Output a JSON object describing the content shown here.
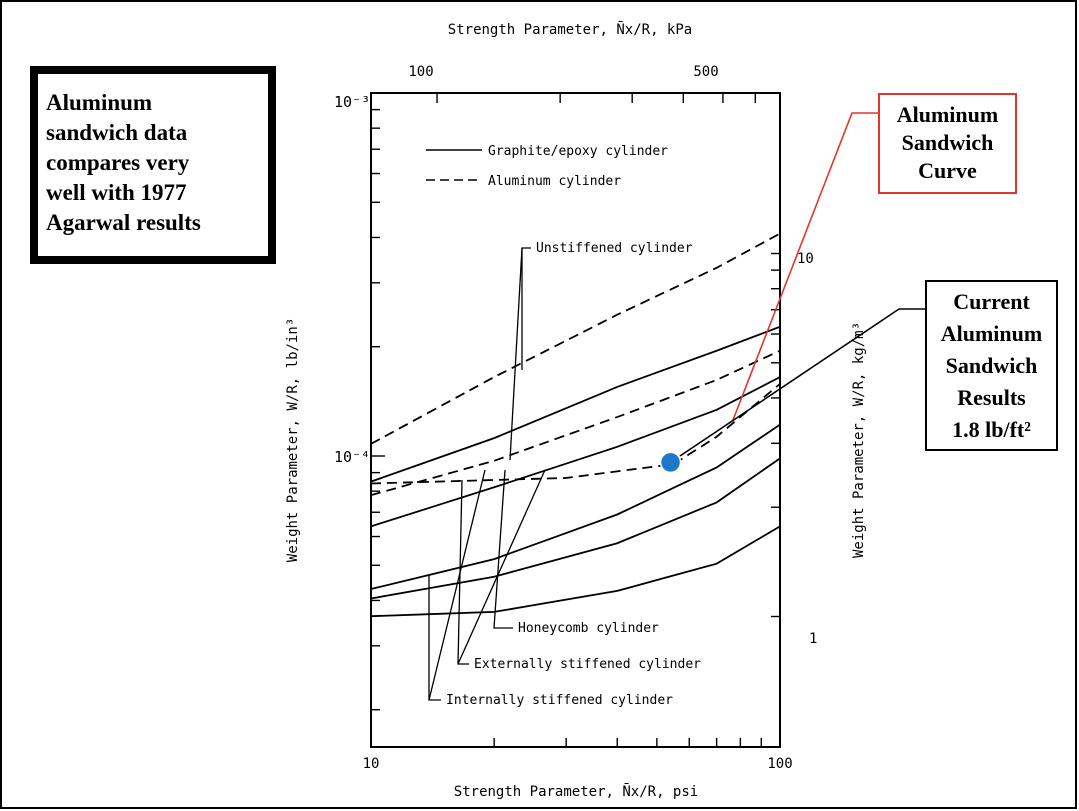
{
  "chart_data": {
    "type": "line",
    "x_scale": "log",
    "y_scale": "log",
    "xlim": [
      10,
      100
    ],
    "ylim": [
      1e-05,
      0.001
    ],
    "xlabel_bottom": "Strength Parameter, N̄x/R, psi",
    "xlabel_top": "Strength Parameter, N̄x/R, kPa",
    "ylabel_left": "Weight Parameter, W/R, lb/in³",
    "ylabel_right": "Weight Parameter, W/R, kg/m³",
    "x_ticks_bottom": [
      "10",
      "100"
    ],
    "x_ticks_top": [
      "100",
      "500"
    ],
    "y_ticks_left": [
      "10⁻³",
      "10⁻⁴"
    ],
    "y_ticks_right": [
      "10",
      "1"
    ],
    "legend": [
      {
        "label": "Graphite/epoxy cylinder",
        "style": "solid"
      },
      {
        "label": "Aluminum cylinder",
        "style": "dashed"
      }
    ],
    "legend_position": "top-left",
    "annotations": [
      "Unstiffened cylinder",
      "Honeycomb cylinder",
      "Externally stiffened cylinder",
      "Internally stiffened cylinder"
    ],
    "series": [
      {
        "style": "dashed",
        "x": [
          10,
          20,
          40,
          70,
          100
        ],
        "y": [
          0.000108,
          0.000165,
          0.000245,
          0.00033,
          0.00041
        ]
      },
      {
        "style": "solid",
        "x": [
          10,
          20,
          40,
          70,
          100
        ],
        "y": [
          8.5e-05,
          0.000112,
          0.000155,
          0.000195,
          0.000227
        ]
      },
      {
        "style": "dashed",
        "x": [
          10,
          20,
          40,
          70,
          100
        ],
        "y": [
          7.8e-05,
          9.7e-05,
          0.000128,
          0.000162,
          0.000195
        ]
      },
      {
        "style": "solid",
        "x": [
          10,
          20,
          40,
          70,
          100
        ],
        "y": [
          6.4e-05,
          8.2e-05,
          0.000106,
          0.000134,
          0.000165
        ]
      },
      {
        "style": "dashed",
        "x": [
          10,
          30,
          55,
          70,
          100
        ],
        "y": [
          8.4e-05,
          8.7e-05,
          9.5e-05,
          0.000113,
          0.000158
        ]
      },
      {
        "style": "solid",
        "x": [
          10,
          20,
          40,
          70,
          100
        ],
        "y": [
          4.3e-05,
          5.2e-05,
          6.9e-05,
          9.3e-05,
          0.000122
        ]
      },
      {
        "style": "solid",
        "x": [
          10,
          20,
          40,
          70,
          100
        ],
        "y": [
          4.05e-05,
          4.65e-05,
          5.75e-05,
          7.45e-05,
          9.85e-05
        ]
      },
      {
        "style": "solid",
        "x": [
          10,
          20,
          40,
          70,
          100
        ],
        "y": [
          3.62e-05,
          3.72e-05,
          4.25e-05,
          5.05e-05,
          6.4e-05
        ]
      }
    ],
    "highlight_point": {
      "x": 54,
      "y": 9.6e-05,
      "color": "#1f77c9"
    }
  },
  "callouts": {
    "left_box": [
      "Aluminum",
      "sandwich data",
      "compares very",
      "well with 1977",
      "Agarwal results"
    ],
    "red_box": [
      "Aluminum",
      "Sandwich",
      "Curve"
    ],
    "black_box": [
      "Current",
      "Aluminum",
      "Sandwich",
      "Results",
      "1.8 lb/ft²"
    ]
  },
  "colors": {
    "highlight": "#1f77c9",
    "red_callout": "#e2362a"
  }
}
